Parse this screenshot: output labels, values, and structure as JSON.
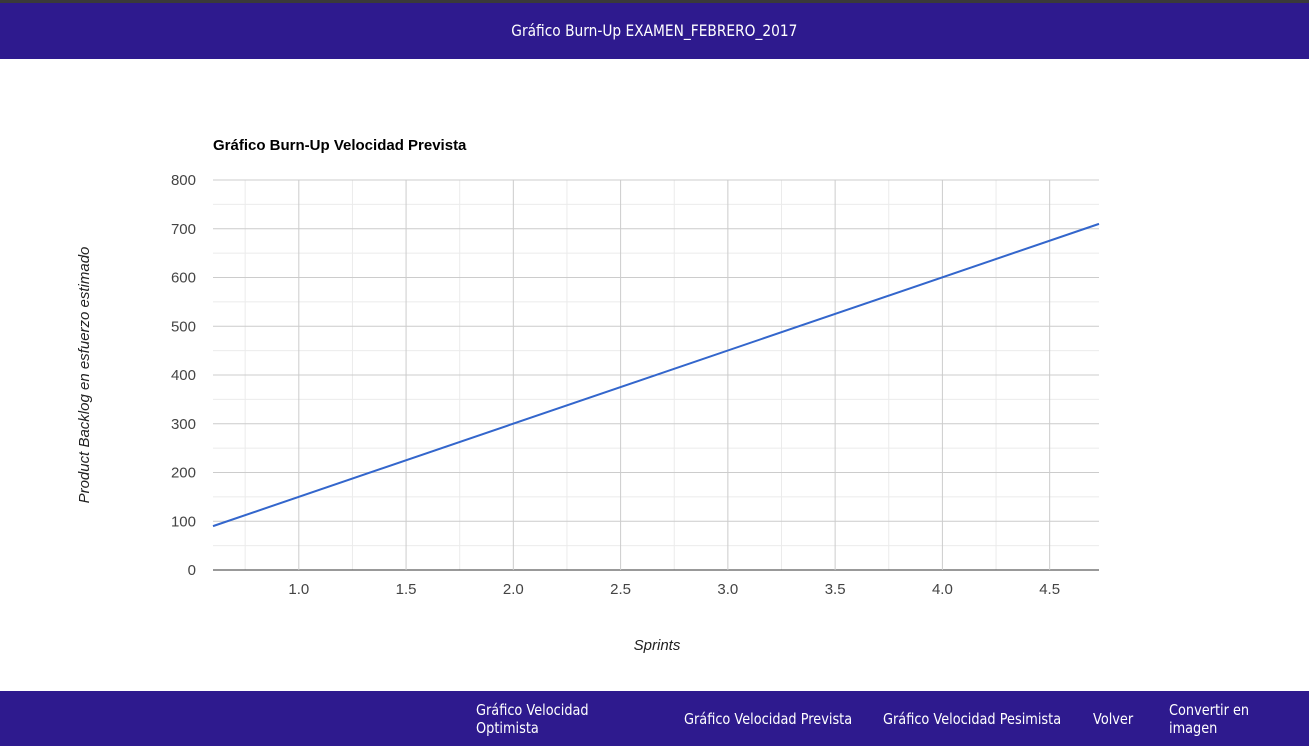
{
  "header": {
    "title": "Gráfico Burn-Up EXAMEN_FEBRERO_2017"
  },
  "footer": {
    "links": [
      {
        "label": "Gráfico Velocidad Optimista"
      },
      {
        "label": "Gráfico Velocidad Prevista"
      },
      {
        "label": "Gráfico Velocidad Pesimista"
      },
      {
        "label": "Volver"
      },
      {
        "label": "Convertir en imagen"
      }
    ]
  },
  "colors": {
    "bar": "#2e1a8e",
    "line": "#3366cc",
    "grid": "#cccccc",
    "minor_grid": "#ebebeb"
  },
  "chart_data": {
    "type": "line",
    "title": "Gráfico Burn-Up Velocidad Prevista",
    "xlabel": "Sprints",
    "ylabel": "Product Backlog en esfuerzo estimado",
    "xlim": [
      0.6,
      4.73
    ],
    "ylim": [
      0,
      800
    ],
    "x_ticks": [
      "1.0",
      "1.5",
      "2.0",
      "2.5",
      "3.0",
      "3.5",
      "4.0",
      "4.5"
    ],
    "y_ticks": [
      "0",
      "100",
      "200",
      "300",
      "400",
      "500",
      "600",
      "700",
      "800"
    ],
    "grid": true,
    "legend": "none",
    "series": [
      {
        "x": [
          0.6,
          4.73
        ],
        "y": [
          90,
          710
        ]
      }
    ]
  }
}
